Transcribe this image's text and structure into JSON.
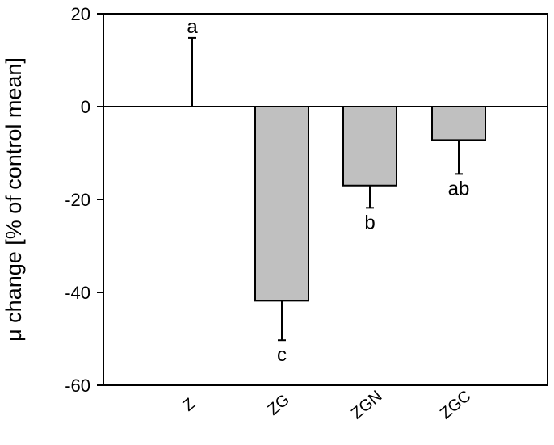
{
  "chart_data": {
    "type": "bar",
    "ylabel": "μ change [% of control mean]",
    "xlabel": "",
    "categories": [
      "Z",
      "ZG",
      "ZGN",
      "ZGC"
    ],
    "values": [
      0,
      -41.8,
      -17.0,
      -7.2
    ],
    "error_ends": [
      14.8,
      -50.3,
      -21.8,
      -14.5
    ],
    "annotations": [
      "a",
      "c",
      "b",
      "ab"
    ],
    "ylim": [
      -60,
      20
    ],
    "yticks": [
      "20",
      "0",
      "-20",
      "-40",
      "-60"
    ],
    "ytick_values": [
      20,
      0,
      -20,
      -40,
      -60
    ],
    "bar_color": "#c0c0c0",
    "grid": false,
    "zero_line": true
  }
}
